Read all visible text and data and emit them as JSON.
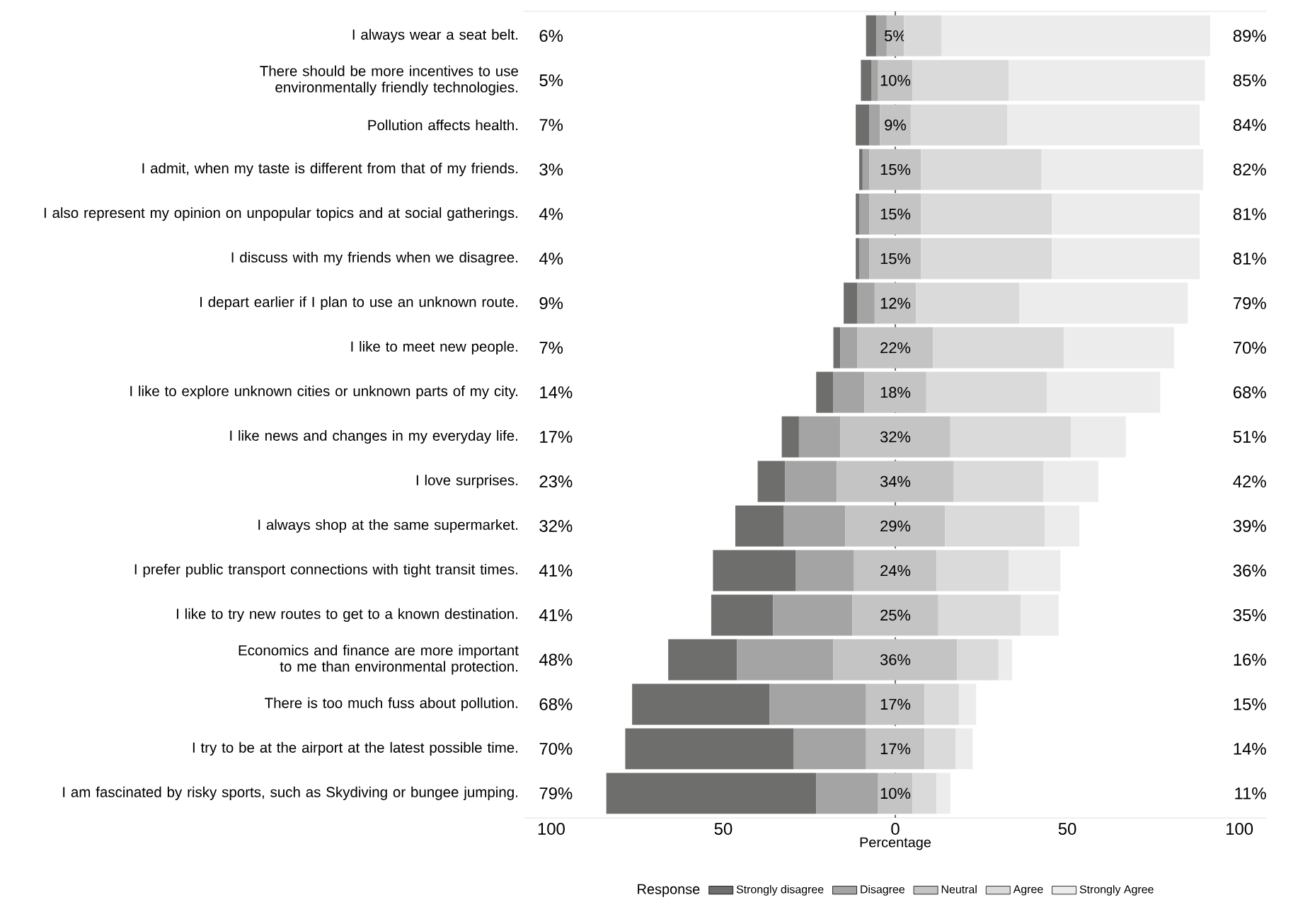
{
  "chart_data": {
    "type": "bar",
    "orientation": "horizontal",
    "xlabel": "Percentage",
    "legend_title": "Response",
    "legend": "bottom",
    "categories": [
      "I always wear a seat belt.",
      "There should be more incentives to use environmentally friendly technologies.",
      "Pollution affects health.",
      "I admit, when my taste is different from that of my friends.",
      "I also represent my opinion on unpopular topics and at social gatherings.",
      "I discuss with my friends when we disagree.",
      "I depart earlier if I plan to use an unknown route.",
      "I like to meet new people.",
      "I like to explore unknown cities or unknown parts of my city.",
      "I like news and changes in my everyday life.",
      "I love surprises.",
      "I always shop at the same supermarket.",
      "I prefer public transport connections with tight transit times.",
      "I like to try new routes to get to a known destination.",
      "Economics and finance are more important to me than environmental protection.",
      "There is too much fuss about pollution.",
      "I try to be at the airport at the latest possible time.",
      "I am fascinated by risky sports, such as Skydiving or bungee jumping."
    ],
    "series": [
      {
        "name": "Strongly disagree",
        "color": "#6e6e6d",
        "values": [
          3,
          3,
          4,
          1,
          1,
          1,
          4,
          2,
          5,
          5,
          8,
          14,
          24,
          18,
          20,
          40,
          49,
          61
        ],
        "base": [
          -8.5,
          -10,
          -11.5,
          -10.5,
          -11.5,
          -11.5,
          -15,
          -18,
          -23,
          -33,
          -40,
          -46.5,
          -53,
          -53.5,
          -66,
          -76.5,
          -78.5,
          -84
        ]
      },
      {
        "name": "Disagree",
        "color": "#a3a4a3",
        "values": [
          3,
          2,
          3,
          2,
          3,
          3,
          5,
          5,
          9,
          12,
          15,
          18,
          17,
          23,
          28,
          28,
          21,
          18
        ],
        "base": [
          -5.5,
          -7,
          -7.5,
          -9.5,
          -10.5,
          -10.5,
          -11,
          -16,
          -18,
          -28,
          -32,
          -32.5,
          -29,
          -35.5,
          -46,
          -36.5,
          -29.5,
          -23
        ]
      },
      {
        "name": "Neutral",
        "color": "#c3c4c3",
        "values": [
          5,
          10,
          9,
          15,
          15,
          15,
          12,
          22,
          18,
          32,
          34,
          29,
          24,
          25,
          36,
          17,
          17,
          10
        ],
        "base": [
          -2.5,
          -5,
          -4.5,
          -7.5,
          -7.5,
          -7.5,
          -6,
          -11,
          -9,
          -16,
          -17,
          -14.5,
          -12,
          -12.5,
          -18,
          -8.5,
          -8.5,
          -5
        ],
        "value_labels": [
          "5%",
          "10%",
          "9%",
          "15%",
          "15%",
          "15%",
          "12%",
          "22%",
          "18%",
          "32%",
          "34%",
          "29%",
          "24%",
          "25%",
          "36%",
          "17%",
          "17%",
          "10%"
        ]
      },
      {
        "name": "Agree",
        "color": "#d9dad9",
        "values": [
          11,
          28,
          28,
          35,
          38,
          38,
          30,
          38,
          35,
          35,
          26,
          29,
          21,
          24,
          12,
          10,
          9,
          7
        ],
        "base": [
          2.5,
          5,
          4.5,
          7.5,
          7.5,
          7.5,
          6,
          11,
          9,
          16,
          17,
          14.5,
          12,
          12.5,
          18,
          8.5,
          8.5,
          5
        ]
      },
      {
        "name": "Strongly Agree",
        "color": "#ececec",
        "values": [
          78,
          57,
          56,
          47,
          43,
          43,
          49,
          32,
          33,
          16,
          16,
          10,
          15,
          11,
          4,
          5,
          5,
          4
        ],
        "base": [
          13.5,
          33,
          32.5,
          42.5,
          45.5,
          45.5,
          36,
          49,
          44,
          51,
          43,
          43.5,
          33,
          36.5,
          30,
          18.5,
          17.5,
          12
        ]
      }
    ],
    "xlim": [
      -108,
      108
    ],
    "xticks": [
      {
        "value": -100,
        "label": "100"
      },
      {
        "value": -50,
        "label": "50"
      },
      0,
      50,
      100
    ],
    "ref_lines": [
      {
        "axis": "x",
        "value": 0,
        "color": "#6e6e6d",
        "line_style": "dashed"
      }
    ],
    "annotations": [
      "6%",
      "5%",
      "7%",
      "3%",
      "4%",
      "4%",
      "9%",
      "7%",
      "14%",
      "17%",
      "23%",
      "32%",
      "41%",
      "41%",
      "48%",
      "68%",
      "70%",
      "79%",
      "89%",
      "85%",
      "84%",
      "82%",
      "81%",
      "81%",
      "79%",
      "70%",
      "68%",
      "51%",
      "42%",
      "39%",
      "36%",
      "35%",
      "16%",
      "15%",
      "14%",
      "11%"
    ]
  }
}
